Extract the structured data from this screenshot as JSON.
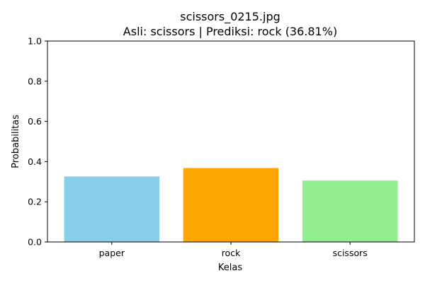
{
  "chart_data": {
    "type": "bar",
    "title": "scissors_0215.jpg",
    "subtitle": "Asli: scissors | Prediksi: rock (36.81%)",
    "xlabel": "Kelas",
    "ylabel": "Probabilitas",
    "categories": [
      "paper",
      "rock",
      "scissors"
    ],
    "values": [
      0.3261,
      0.3681,
      0.3058
    ],
    "colors": [
      "#87ceeb",
      "#ffa500",
      "#90ee90"
    ],
    "ylim": [
      0,
      1.0
    ],
    "yticks": [
      0.0,
      0.2,
      0.4,
      0.6,
      0.8,
      1.0
    ],
    "ytick_labels": [
      "0.0",
      "0.2",
      "0.4",
      "0.6",
      "0.8",
      "1.0"
    ],
    "grid": false,
    "legend": "none"
  }
}
